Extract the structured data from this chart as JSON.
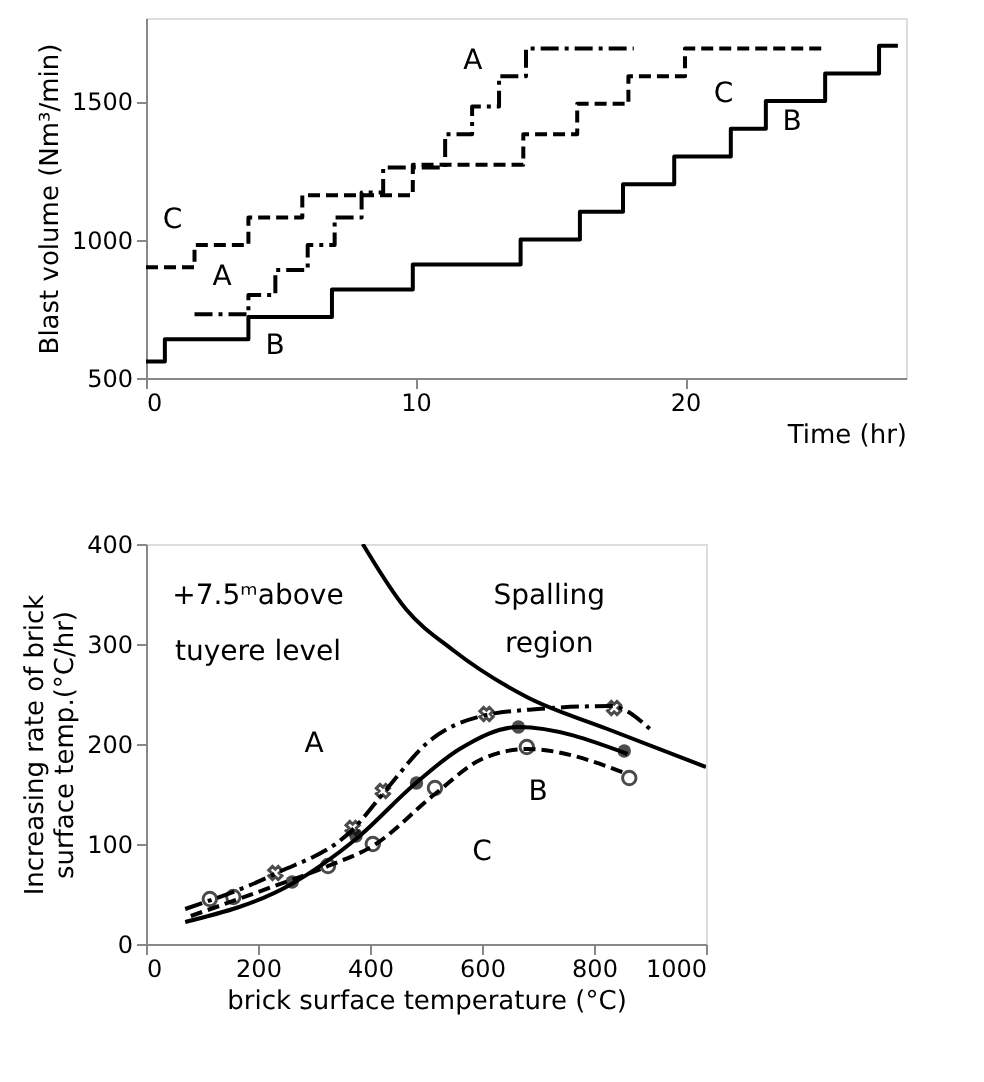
{
  "chart_data": [
    {
      "type": "step",
      "xlabel": "Time (hr)",
      "ylabel": "Blast volume (Nm³/min)",
      "xlim": [
        0,
        28.2
      ],
      "ylim": [
        500,
        1800
      ],
      "xticks": [
        0,
        10,
        20
      ],
      "yticks": [
        500,
        1000,
        1500
      ],
      "grid": false,
      "series": [
        {
          "color": "#000000",
          "line_style": "solid",
          "x": [
            0,
            0.7,
            3.8,
            6.9,
            9.9,
            13.9,
            16.1,
            17.7,
            19.6,
            21.7,
            23.0,
            25.2,
            27.2,
            27.9
          ],
          "values": [
            560,
            640,
            720,
            820,
            910,
            1000,
            1100,
            1200,
            1300,
            1400,
            1500,
            1600,
            1700,
            1700
          ]
        },
        {
          "color": "#000000",
          "line_style": "dashdot",
          "x": [
            1.8,
            3.8,
            4.8,
            6.0,
            7.0,
            8.0,
            8.8,
            11.1,
            12.1,
            13.1,
            14.1,
            18.1
          ],
          "values": [
            730,
            800,
            890,
            980,
            1080,
            1170,
            1260,
            1380,
            1480,
            1590,
            1690,
            1690
          ]
        },
        {
          "color": "#000000",
          "line_style": "dashed",
          "x": [
            0,
            1.8,
            3.8,
            5.8,
            9.9,
            14.0,
            16.0,
            17.9,
            20.0,
            25.2
          ],
          "values": [
            900,
            980,
            1080,
            1160,
            1270,
            1380,
            1490,
            1590,
            1690,
            1690
          ]
        }
      ],
      "annotations": [
        "A",
        "A",
        "C",
        "C",
        "B",
        "B"
      ]
    },
    {
      "type": "line",
      "xlabel": "brick surface temperature (°C)",
      "ylabel": "Increasing rate of brick\nsurface temp.(°C/hr)",
      "xlim": [
        0,
        1000
      ],
      "ylim": [
        0,
        400
      ],
      "xticks": [
        0,
        200,
        400,
        600,
        800,
        1000
      ],
      "yticks": [
        0,
        100,
        200,
        300,
        400
      ],
      "grid": false,
      "series": [
        {
          "color": "#000000",
          "line_style": "dashdot",
          "x": [
            70,
            230,
            370,
            430,
            500,
            600,
            700,
            830,
            900
          ],
          "values": [
            35,
            70,
            115,
            155,
            200,
            228,
            235,
            238,
            215
          ]
        },
        {
          "color": "#000000",
          "line_style": "solid",
          "x": [
            70,
            260,
            375,
            480,
            560,
            665,
            860
          ],
          "values": [
            22,
            60,
            105,
            160,
            195,
            217,
            190
          ]
        },
        {
          "color": "#000000",
          "line_style": "dashed",
          "x": [
            80,
            200,
            325,
            405,
            516,
            600,
            680,
            860
          ],
          "values": [
            28,
            52,
            78,
            98,
            150,
            185,
            195,
            170
          ]
        },
        {
          "type": "scatter",
          "marker": "cross",
          "color": "#000000",
          "x": [
            231,
            369,
            423,
            608,
            836
          ],
          "values": [
            71,
            116,
            153,
            230,
            236
          ]
        },
        {
          "type": "scatter",
          "marker": "circle",
          "color": "#000000",
          "x": [
            261,
            375,
            483,
            665,
            854
          ],
          "values": [
            62,
            108,
            161,
            217,
            193
          ]
        },
        {
          "type": "scatter",
          "marker": "circle",
          "color": "#000000",
          "x": [
            114,
            156,
            325,
            405,
            516,
            680,
            863
          ],
          "values": [
            45,
            47,
            78,
            100,
            156,
            197,
            166
          ]
        },
        {
          "color": "#000000",
          "line_style": "solid",
          "x": [
            387,
            464,
            548,
            680,
            824,
            1000
          ],
          "values": [
            400,
            335,
            294,
            247,
            215,
            177
          ]
        }
      ],
      "annotations": [
        "+7.5ᵐabove",
        "tuyere level",
        "Spalling",
        "region",
        "A",
        "B",
        "C"
      ]
    }
  ]
}
